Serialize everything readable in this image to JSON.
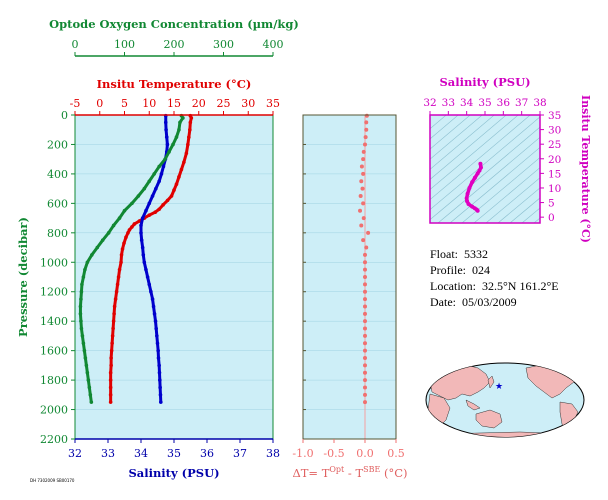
{
  "figure_info": {
    "float_label": "Float:",
    "float_value": "5332",
    "profile_label": "Profile:",
    "profile_value": "024",
    "location_label": "Location:",
    "location_value": "32.5°N  161.2°E",
    "date_label": "Date:",
    "date_value": "05/03/2009",
    "tiny_note": "DH 7302009 SB00170"
  },
  "colors": {
    "temperature": "#e00000",
    "salinity": "#0000cc",
    "oxygen": "#118833",
    "delta": "#f07070",
    "ts": "#e000c0",
    "panel_bg": "#cdeef7",
    "axis_green": "#118833",
    "axis_red": "#e00000",
    "axis_blue": "#0000aa",
    "axis_magenta": "#d000c0",
    "land": "#f2b8b8",
    "ocean": "#cdeef7",
    "float_marker": "#0000cc"
  },
  "chart_data": [
    {
      "type": "line",
      "panel": "profiles",
      "ylabel": "Pressure (decibar)",
      "ylim": [
        2200,
        0
      ],
      "yticks": [
        0,
        200,
        400,
        600,
        800,
        1000,
        1200,
        1400,
        1600,
        1800,
        2000,
        2200
      ],
      "axes": {
        "oxygen": {
          "label": "Optode Oxygen Concentration (µm/kg)",
          "lim": [
            0,
            400
          ],
          "ticks": [
            0,
            100,
            200,
            300,
            400
          ]
        },
        "temperature": {
          "label": "Insitu Temperature (°C)",
          "lim": [
            -5,
            35
          ],
          "ticks": [
            -5,
            0,
            5,
            10,
            15,
            20,
            25,
            30,
            35
          ]
        },
        "salinity": {
          "label": "Salinity (PSU)",
          "lim": [
            32,
            38
          ],
          "ticks": [
            32,
            33,
            34,
            35,
            36,
            37,
            38
          ]
        }
      },
      "series": [
        {
          "name": "temperature",
          "axis": "temperature",
          "points": [
            [
              18.3,
              5
            ],
            [
              18.5,
              20
            ],
            [
              18.3,
              50
            ],
            [
              18.2,
              100
            ],
            [
              18.0,
              150
            ],
            [
              17.8,
              200
            ],
            [
              17.5,
              260
            ],
            [
              17.0,
              320
            ],
            [
              16.5,
              370
            ],
            [
              16.0,
              420
            ],
            [
              15.5,
              470
            ],
            [
              15.0,
              510
            ],
            [
              14.5,
              550
            ],
            [
              13.7,
              580
            ],
            [
              12.8,
              610
            ],
            [
              12.0,
              640
            ],
            [
              11.2,
              660
            ],
            [
              10.0,
              680
            ],
            [
              9.0,
              700
            ],
            [
              8.0,
              720
            ],
            [
              7.0,
              740
            ],
            [
              6.5,
              760
            ],
            [
              6.0,
              780
            ],
            [
              5.7,
              800
            ],
            [
              5.3,
              830
            ],
            [
              4.9,
              870
            ],
            [
              4.6,
              910
            ],
            [
              4.4,
              950
            ],
            [
              4.3,
              1000
            ],
            [
              4.0,
              1050
            ],
            [
              3.8,
              1100
            ],
            [
              3.6,
              1150
            ],
            [
              3.4,
              1200
            ],
            [
              3.2,
              1250
            ],
            [
              3.0,
              1300
            ],
            [
              2.9,
              1350
            ],
            [
              2.8,
              1400
            ],
            [
              2.7,
              1450
            ],
            [
              2.6,
              1500
            ],
            [
              2.5,
              1550
            ],
            [
              2.4,
              1600
            ],
            [
              2.3,
              1650
            ],
            [
              2.3,
              1700
            ],
            [
              2.2,
              1750
            ],
            [
              2.2,
              1800
            ],
            [
              2.2,
              1850
            ],
            [
              2.2,
              1900
            ],
            [
              2.2,
              1950
            ]
          ]
        },
        {
          "name": "salinity",
          "axis": "salinity",
          "points": [
            [
              34.75,
              5
            ],
            [
              34.75,
              50
            ],
            [
              34.76,
              100
            ],
            [
              34.78,
              150
            ],
            [
              34.8,
              200
            ],
            [
              34.78,
              250
            ],
            [
              34.74,
              300
            ],
            [
              34.68,
              350
            ],
            [
              34.62,
              400
            ],
            [
              34.55,
              450
            ],
            [
              34.45,
              500
            ],
            [
              34.35,
              550
            ],
            [
              34.25,
              600
            ],
            [
              34.15,
              650
            ],
            [
              34.05,
              700
            ],
            [
              34.0,
              750
            ],
            [
              34.0,
              800
            ],
            [
              34.02,
              850
            ],
            [
              34.05,
              900
            ],
            [
              34.07,
              950
            ],
            [
              34.1,
              1000
            ],
            [
              34.15,
              1050
            ],
            [
              34.2,
              1100
            ],
            [
              34.25,
              1150
            ],
            [
              34.3,
              1200
            ],
            [
              34.35,
              1250
            ],
            [
              34.38,
              1300
            ],
            [
              34.41,
              1350
            ],
            [
              34.44,
              1400
            ],
            [
              34.46,
              1450
            ],
            [
              34.48,
              1500
            ],
            [
              34.5,
              1550
            ],
            [
              34.52,
              1600
            ],
            [
              34.53,
              1650
            ],
            [
              34.55,
              1700
            ],
            [
              34.56,
              1750
            ],
            [
              34.57,
              1800
            ],
            [
              34.58,
              1850
            ],
            [
              34.59,
              1900
            ],
            [
              34.6,
              1950
            ]
          ]
        },
        {
          "name": "oxygen",
          "axis": "oxygen",
          "points": [
            [
              215,
              5
            ],
            [
              218,
              20
            ],
            [
              212,
              50
            ],
            [
              210,
              100
            ],
            [
              205,
              150
            ],
            [
              198,
              200
            ],
            [
              190,
              250
            ],
            [
              182,
              300
            ],
            [
              170,
              350
            ],
            [
              160,
              400
            ],
            [
              150,
              450
            ],
            [
              140,
              500
            ],
            [
              128,
              550
            ],
            [
              115,
              600
            ],
            [
              100,
              650
            ],
            [
              90,
              700
            ],
            [
              78,
              750
            ],
            [
              68,
              800
            ],
            [
              56,
              850
            ],
            [
              45,
              900
            ],
            [
              34,
              950
            ],
            [
              25,
              1000
            ],
            [
              20,
              1050
            ],
            [
              17,
              1100
            ],
            [
              14,
              1150
            ],
            [
              13,
              1200
            ],
            [
              12,
              1250
            ],
            [
              11,
              1300
            ],
            [
              11,
              1350
            ],
            [
              12,
              1400
            ],
            [
              13,
              1450
            ],
            [
              15,
              1500
            ],
            [
              17,
              1550
            ],
            [
              19,
              1600
            ],
            [
              21,
              1650
            ],
            [
              23,
              1700
            ],
            [
              25,
              1750
            ],
            [
              27,
              1800
            ],
            [
              29,
              1850
            ],
            [
              31,
              1900
            ],
            [
              33,
              1950
            ]
          ]
        }
      ]
    },
    {
      "type": "scatter",
      "panel": "delta",
      "xlabel": "ΔT= T^Opt - T^SBE (°C)",
      "xlim": [
        -1.0,
        0.5
      ],
      "xticks": [
        -1.0,
        -0.5,
        0.0,
        0.5
      ],
      "ylim": [
        2200,
        0
      ],
      "series": [
        {
          "name": "delta_T",
          "points": [
            [
              0.03,
              5
            ],
            [
              0.02,
              50
            ],
            [
              0.02,
              100
            ],
            [
              0.01,
              150
            ],
            [
              0.0,
              200
            ],
            [
              -0.02,
              250
            ],
            [
              -0.03,
              300
            ],
            [
              -0.05,
              350
            ],
            [
              -0.03,
              400
            ],
            [
              -0.06,
              450
            ],
            [
              -0.04,
              500
            ],
            [
              -0.07,
              550
            ],
            [
              -0.03,
              600
            ],
            [
              -0.08,
              650
            ],
            [
              -0.02,
              700
            ],
            [
              -0.06,
              750
            ],
            [
              0.05,
              800
            ],
            [
              -0.03,
              850
            ],
            [
              0.02,
              900
            ],
            [
              0.0,
              950
            ],
            [
              0.0,
              1000
            ],
            [
              0.0,
              1050
            ],
            [
              0.0,
              1100
            ],
            [
              0.0,
              1150
            ],
            [
              0.0,
              1200
            ],
            [
              0.0,
              1250
            ],
            [
              0.0,
              1300
            ],
            [
              0.0,
              1350
            ],
            [
              0.0,
              1400
            ],
            [
              0.0,
              1450
            ],
            [
              0.0,
              1500
            ],
            [
              0.0,
              1550
            ],
            [
              0.0,
              1600
            ],
            [
              0.0,
              1650
            ],
            [
              0.0,
              1700
            ],
            [
              0.0,
              1750
            ],
            [
              0.0,
              1800
            ],
            [
              0.0,
              1850
            ],
            [
              0.0,
              1900
            ],
            [
              0.0,
              1950
            ]
          ]
        }
      ]
    },
    {
      "type": "line",
      "panel": "ts",
      "xlabel": "Salinity (PSU)",
      "ylabel": "Insitu Temperature (°C)",
      "xlim": [
        32,
        38
      ],
      "xticks": [
        32,
        33,
        34,
        35,
        36,
        37,
        38
      ],
      "ylim": [
        -2,
        35
      ],
      "yticks": [
        0,
        5,
        10,
        15,
        20,
        25,
        30,
        35
      ],
      "series": [
        {
          "name": "ts",
          "points": [
            [
              34.75,
              18.3
            ],
            [
              34.78,
              17.0
            ],
            [
              34.7,
              16.0
            ],
            [
              34.6,
              15.0
            ],
            [
              34.45,
              13.5
            ],
            [
              34.3,
              12.0
            ],
            [
              34.15,
              10.0
            ],
            [
              34.05,
              8.0
            ],
            [
              34.0,
              6.5
            ],
            [
              34.02,
              5.5
            ],
            [
              34.1,
              4.5
            ],
            [
              34.3,
              3.6
            ],
            [
              34.45,
              3.0
            ],
            [
              34.55,
              2.6
            ],
            [
              34.6,
              2.2
            ]
          ]
        }
      ]
    }
  ]
}
